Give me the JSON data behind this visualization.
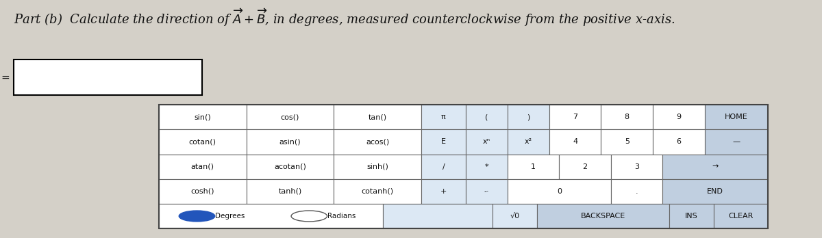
{
  "title": "Part (b)  Calculate the direction of $\\overrightarrow{A} + \\overrightarrow{B}$, in degrees, measured counterclockwise from the positive x-axis.",
  "bg_color": "#d4d0c8",
  "input_box_color": "#ffffff",
  "input_box_border": "#000000",
  "table_bg_light": "#dde8f0",
  "table_bg_white": "#ffffff",
  "table_bg_dark": "#c8d8e8",
  "table_border": "#888888",
  "button_bg": "#c8d8e8",
  "button_bg_white": "#ffffff",
  "rows": [
    [
      "sin()",
      "cos()",
      "tan()",
      "π",
      "(",
      ")",
      "7",
      "8",
      "9",
      "HOME"
    ],
    [
      "cotan()",
      "asin()",
      "acos()",
      "E",
      "xⁿ",
      "x²",
      "4",
      "5",
      "6",
      "--"
    ],
    [
      "atan()",
      "acotan()",
      "sinh()",
      "/",
      "*",
      "1",
      "2",
      "3",
      "→"
    ],
    [
      "cosh()",
      "tanh()",
      "cotanh()",
      "+",
      "-·",
      "0",
      ".",
      "END"
    ],
    [
      "Degrees",
      "Radians",
      "√0",
      "BACKSPACE",
      "INS",
      "CLEAR"
    ]
  ],
  "equal_sign": "=",
  "degrees_selected": true,
  "font_size_title": 13,
  "font_size_cell": 8
}
